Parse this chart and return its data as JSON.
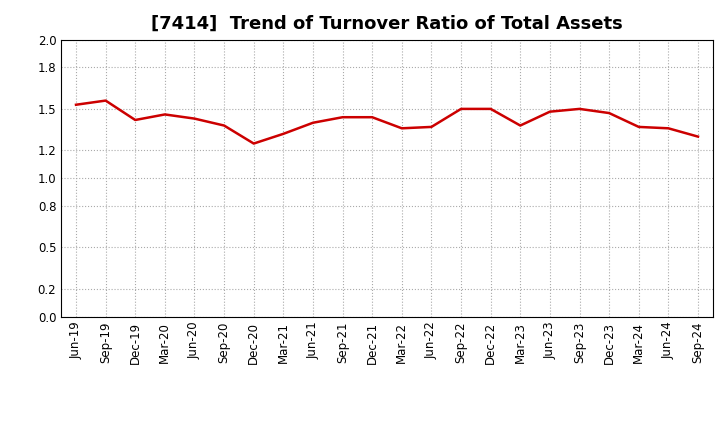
{
  "title": "[7414]  Trend of Turnover Ratio of Total Assets",
  "x_labels": [
    "Jun-19",
    "Sep-19",
    "Dec-19",
    "Mar-20",
    "Jun-20",
    "Sep-20",
    "Dec-20",
    "Mar-21",
    "Jun-21",
    "Sep-21",
    "Dec-21",
    "Mar-22",
    "Jun-22",
    "Sep-22",
    "Dec-22",
    "Mar-23",
    "Jun-23",
    "Sep-23",
    "Dec-23",
    "Mar-24",
    "Jun-24",
    "Sep-24"
  ],
  "y_values": [
    1.53,
    1.56,
    1.42,
    1.46,
    1.43,
    1.38,
    1.25,
    1.32,
    1.4,
    1.44,
    1.44,
    1.36,
    1.37,
    1.5,
    1.5,
    1.38,
    1.48,
    1.5,
    1.47,
    1.37,
    1.36,
    1.3
  ],
  "line_color": "#cc0000",
  "line_width": 1.8,
  "ylim": [
    0.0,
    2.0
  ],
  "yticks": [
    0.0,
    0.2,
    0.5,
    0.8,
    1.0,
    1.2,
    1.5,
    1.8,
    2.0
  ],
  "grid_color": "#aaaaaa",
  "grid_linestyle": ":",
  "background_color": "#ffffff",
  "title_fontsize": 13,
  "tick_fontsize": 8.5
}
